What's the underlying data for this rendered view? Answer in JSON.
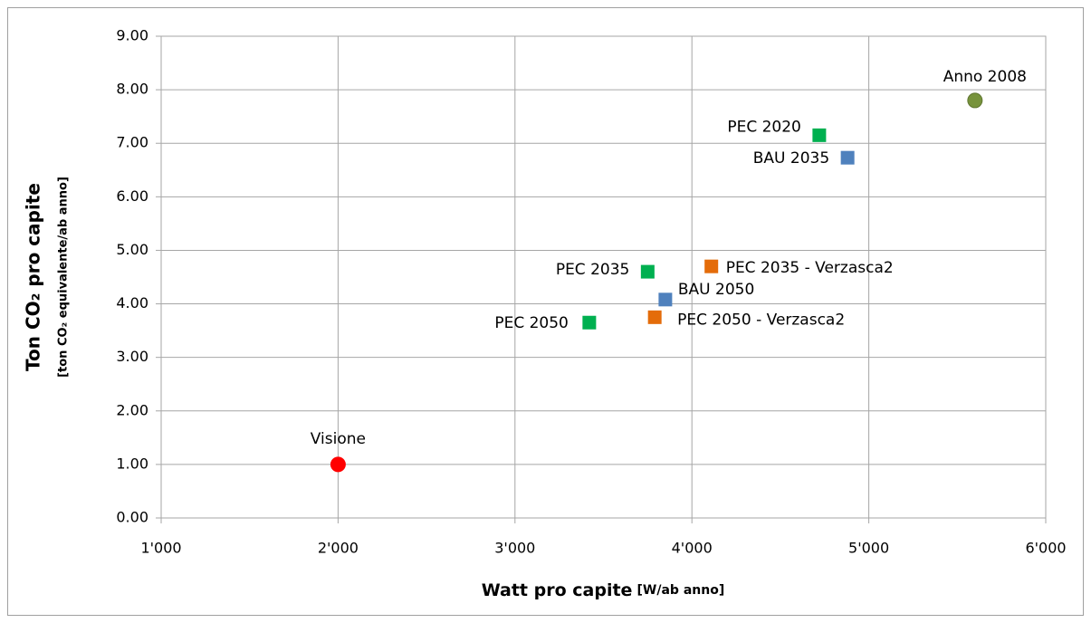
{
  "chart_data": {
    "type": "scatter",
    "x_label": "Watt pro capite",
    "x_sublabel": "[W/ab anno]",
    "y_label": "Ton CO₂ pro capite",
    "y_sublabel": "[ton CO₂ equivalente/ab anno]",
    "xlim": [
      1000,
      6000
    ],
    "xticks": [
      {
        "value": 1000,
        "label": "1'000"
      },
      {
        "value": 2000,
        "label": "2'000"
      },
      {
        "value": 3000,
        "label": "3'000"
      },
      {
        "value": 4000,
        "label": "4'000"
      },
      {
        "value": 5000,
        "label": "5'000"
      },
      {
        "value": 6000,
        "label": "6'000"
      }
    ],
    "ylim": [
      0,
      9
    ],
    "yticks": [
      {
        "value": 0,
        "label": "0.00"
      },
      {
        "value": 1,
        "label": "1.00"
      },
      {
        "value": 2,
        "label": "2.00"
      },
      {
        "value": 3,
        "label": "3.00"
      },
      {
        "value": 4,
        "label": "4.00"
      },
      {
        "value": 5,
        "label": "5.00"
      },
      {
        "value": 6,
        "label": "6.00"
      },
      {
        "value": 7,
        "label": "7.00"
      },
      {
        "value": 8,
        "label": "8.00"
      },
      {
        "value": 9,
        "label": "9.00"
      }
    ],
    "grid": true,
    "series": [
      {
        "name": "Visione",
        "color": "#ff0000",
        "marker": "circle",
        "x": [
          2000
        ],
        "values": [
          1.0
        ]
      },
      {
        "name": "Anno 2008",
        "color": "#77933c",
        "marker": "circle",
        "x": [
          5600
        ],
        "values": [
          7.8
        ]
      },
      {
        "name": "PEC 2020",
        "color": "#00b050",
        "marker": "square",
        "x": [
          4720
        ],
        "values": [
          7.15
        ]
      },
      {
        "name": "BAU 2035",
        "color": "#4f81bd",
        "marker": "square",
        "x": [
          4880
        ],
        "values": [
          6.73
        ]
      },
      {
        "name": "PEC 2035",
        "color": "#00b050",
        "marker": "square",
        "x": [
          3750
        ],
        "values": [
          4.6
        ]
      },
      {
        "name": "PEC 2035 - Verzasca2",
        "color": "#e46c0a",
        "marker": "square",
        "x": [
          4110
        ],
        "values": [
          4.7
        ]
      },
      {
        "name": "BAU 2050",
        "color": "#4f81bd",
        "marker": "square",
        "x": [
          3850
        ],
        "values": [
          4.08
        ]
      },
      {
        "name": "PEC 2050 - Verzasca2",
        "color": "#e46c0a",
        "marker": "square",
        "x": [
          3790
        ],
        "values": [
          3.75
        ]
      },
      {
        "name": "PEC 2050",
        "color": "#00b050",
        "marker": "square",
        "x": [
          3420
        ],
        "values": [
          3.65
        ]
      }
    ]
  }
}
